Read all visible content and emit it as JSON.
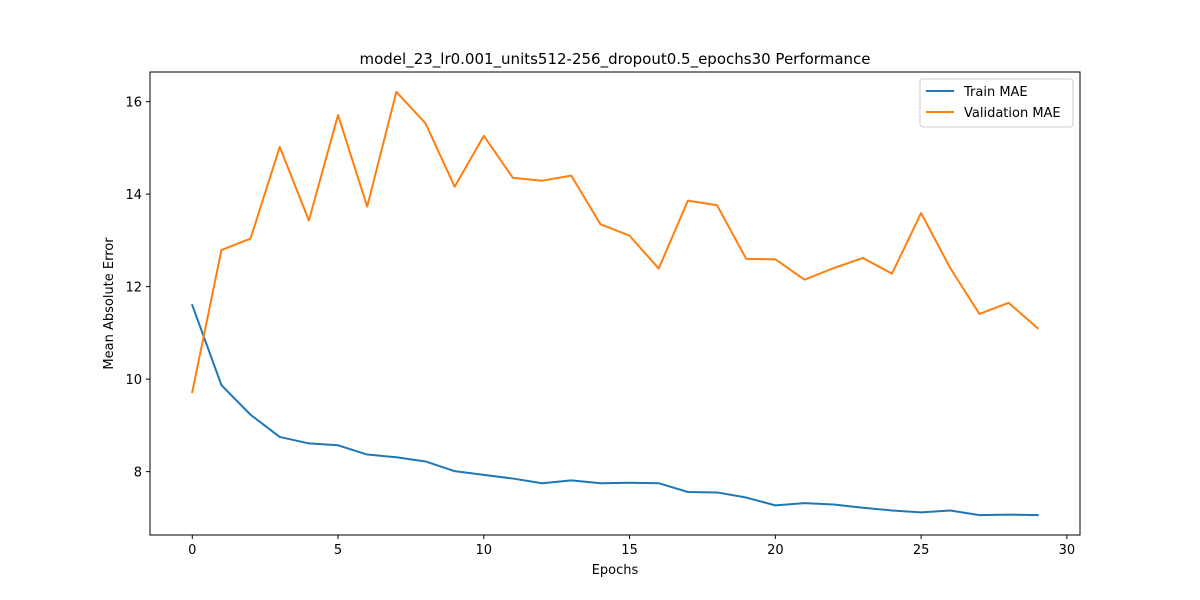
{
  "chart_data": {
    "type": "line",
    "title": "model_23_lr0.001_units512-256_dropout0.5_epochs30 Performance",
    "xlabel": "Epochs",
    "ylabel": "Mean Absolute Error",
    "xlim": [
      -1.45,
      30.45
    ],
    "ylim": [
      6.63,
      16.64
    ],
    "xticks": [
      0,
      5,
      10,
      15,
      20,
      25,
      30
    ],
    "yticks": [
      8,
      10,
      12,
      14,
      16
    ],
    "grid": false,
    "legend_position": "top-right",
    "x": [
      0,
      1,
      2,
      3,
      4,
      5,
      6,
      7,
      8,
      9,
      10,
      11,
      12,
      13,
      14,
      15,
      16,
      17,
      18,
      19,
      20,
      21,
      22,
      23,
      24,
      25,
      26,
      27,
      28,
      29
    ],
    "series": [
      {
        "name": "Train MAE",
        "color": "#1f77b4",
        "values": [
          11.6,
          9.87,
          9.23,
          8.75,
          8.61,
          8.57,
          8.37,
          8.31,
          8.22,
          8.01,
          7.93,
          7.85,
          7.75,
          7.81,
          7.75,
          7.76,
          7.75,
          7.56,
          7.55,
          7.44,
          7.27,
          7.32,
          7.29,
          7.22,
          7.16,
          7.12,
          7.16,
          7.06,
          7.07,
          7.06
        ]
      },
      {
        "name": "Validation MAE",
        "color": "#ff7f0e",
        "values": [
          9.72,
          12.79,
          13.04,
          15.02,
          13.43,
          15.71,
          13.73,
          16.21,
          15.53,
          14.16,
          15.26,
          14.35,
          14.29,
          14.4,
          13.35,
          13.1,
          12.39,
          13.86,
          13.76,
          12.6,
          12.59,
          12.15,
          12.4,
          12.62,
          12.28,
          13.59,
          12.4,
          11.41,
          11.65,
          11.1
        ]
      }
    ]
  }
}
